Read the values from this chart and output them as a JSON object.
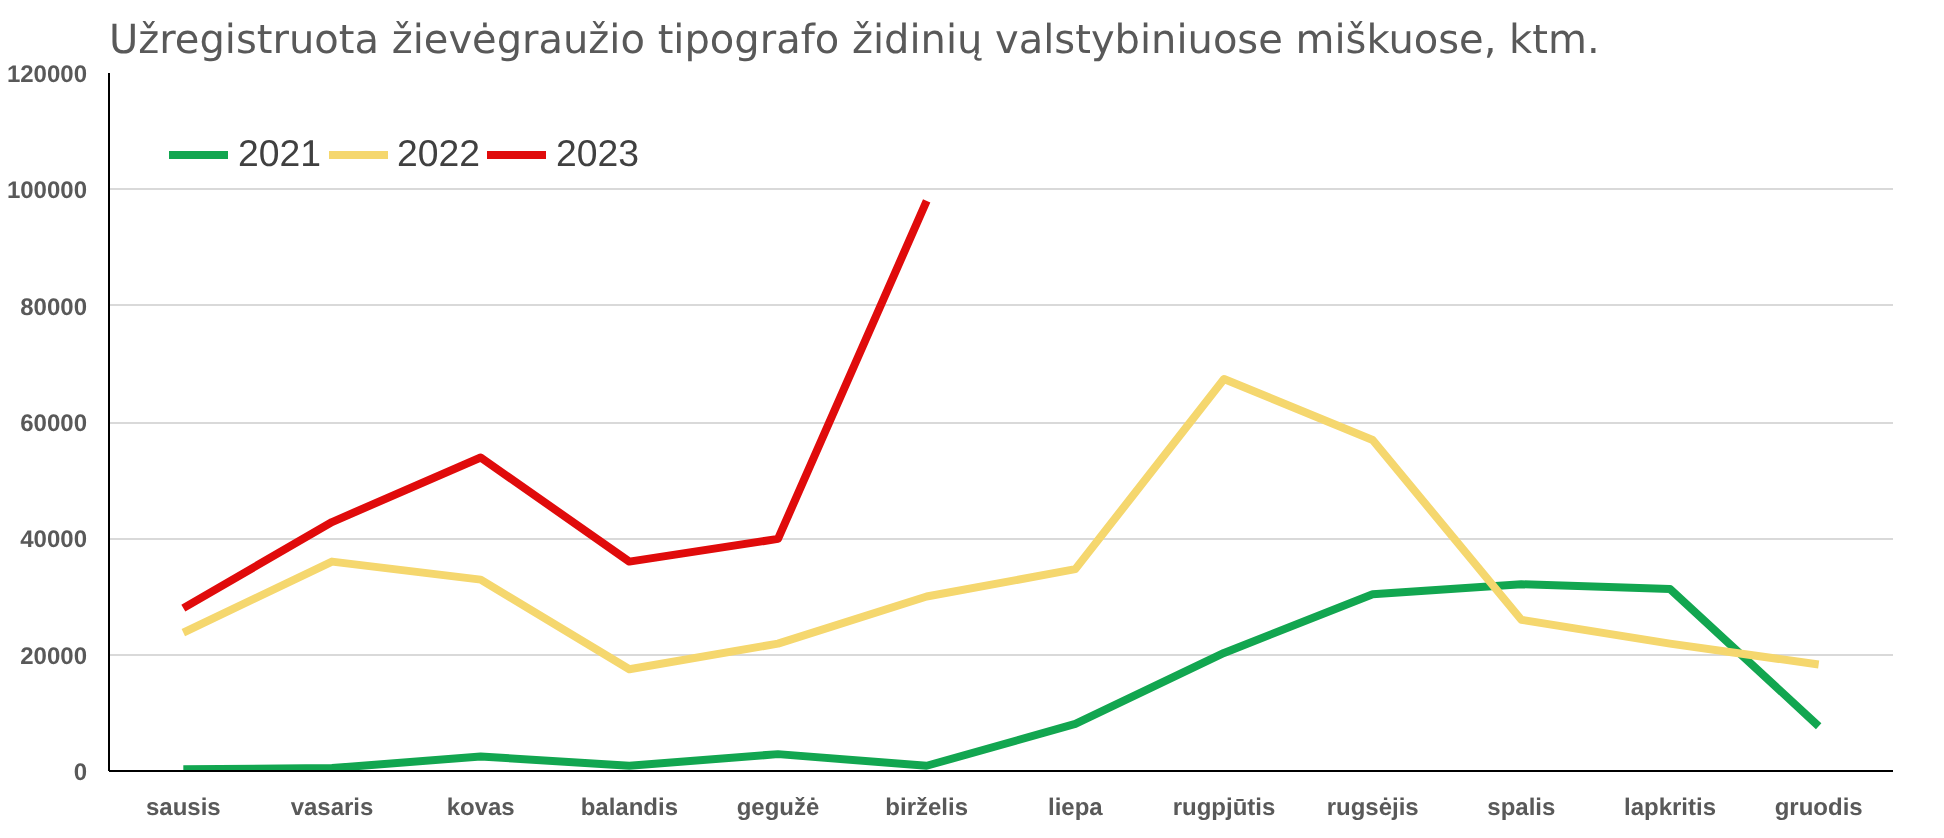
{
  "chart_data": {
    "type": "line",
    "title": "Užregistruota žievėgraužio tipografo židinių valstybiniuose miškuose, ktm.",
    "categories": [
      "sausis",
      "vasaris",
      "kovas",
      "balandis",
      "gegužė",
      "birželis",
      "liepa",
      "rugpjūtis",
      "rugsėjis",
      "spalis",
      "lapkritis",
      "gruodis"
    ],
    "series": [
      {
        "name": "2021",
        "color": "#12a650",
        "values": [
          300,
          500,
          2500,
          900,
          2900,
          900,
          8100,
          20300,
          30400,
          32100,
          31300,
          7700
        ]
      },
      {
        "name": "2022",
        "color": "#f5d76e",
        "values": [
          23800,
          36000,
          32900,
          17500,
          21900,
          30000,
          34700,
          67400,
          56900,
          26000,
          21900,
          18300
        ]
      },
      {
        "name": "2023",
        "color": "#e00b0b",
        "values": [
          28000,
          42800,
          53900,
          36000,
          39900,
          98000,
          null,
          null,
          null,
          null,
          null,
          null
        ]
      }
    ],
    "ylim": [
      0,
      120000
    ],
    "yticks": [
      0,
      20000,
      40000,
      60000,
      80000,
      100000,
      120000
    ],
    "grid": "y",
    "legend": "top left",
    "marker": "none",
    "line_style": "solid"
  }
}
